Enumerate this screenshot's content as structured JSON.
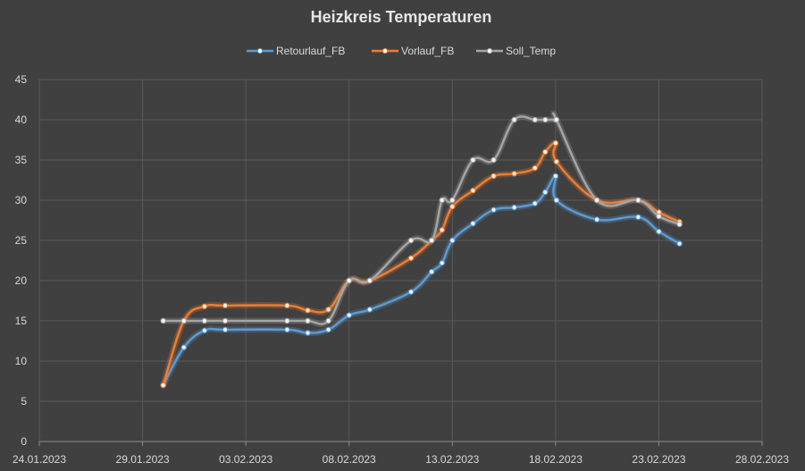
{
  "chart_data": {
    "type": "line",
    "title": "Heizkreis Temperaturen",
    "xlabel": "",
    "ylabel": "",
    "ylim": [
      0,
      45
    ],
    "xlim": [
      "24.01.2023",
      "28.02.2023"
    ],
    "grid": true,
    "legend_position": "top",
    "x_ticks": [
      "24.01.2023",
      "29.01.2023",
      "03.02.2023",
      "08.02.2023",
      "13.02.2023",
      "18.02.2023",
      "23.02.2023",
      "28.02.2023"
    ],
    "y_ticks": [
      0,
      5,
      10,
      15,
      20,
      25,
      30,
      35,
      40,
      45
    ],
    "series": [
      {
        "name": "Retourlauf_FB",
        "color": "#5b9bd5",
        "points": [
          [
            "30.01.2023",
            7
          ],
          [
            "31.01.2023",
            11.7
          ],
          [
            "01.02.2023",
            13.8
          ],
          [
            "02.02.2023",
            13.9
          ],
          [
            "05.02.2023",
            13.9
          ],
          [
            "06.02.2023",
            13.5
          ],
          [
            "07.02.2023",
            13.9
          ],
          [
            "08.02.2023",
            15.7
          ],
          [
            "09.02.2023",
            16.4
          ],
          [
            "11.02.2023",
            18.6
          ],
          [
            "12.02.2023",
            21.1
          ],
          [
            "12.02.2023 12:00",
            22.2
          ],
          [
            "13.02.2023",
            25
          ],
          [
            "14.02.2023",
            27.1
          ],
          [
            "15.02.2023",
            28.8
          ],
          [
            "16.02.2023",
            29.1
          ],
          [
            "17.02.2023",
            29.6
          ],
          [
            "17.02.2023 12:00",
            31
          ],
          [
            "18.02.2023",
            33
          ],
          [
            "18.02.2023 01:00",
            30
          ],
          [
            "20.02.2023",
            27.6
          ],
          [
            "22.02.2023",
            27.9
          ],
          [
            "23.02.2023",
            26.1
          ],
          [
            "24.02.2023",
            24.6
          ]
        ]
      },
      {
        "name": "Vorlauf_FB",
        "color": "#ed7d31",
        "points": [
          [
            "30.01.2023",
            7
          ],
          [
            "31.01.2023",
            15
          ],
          [
            "01.02.2023",
            16.8
          ],
          [
            "02.02.2023",
            16.9
          ],
          [
            "05.02.2023",
            16.9
          ],
          [
            "06.02.2023",
            16.3
          ],
          [
            "07.02.2023",
            16.4
          ],
          [
            "08.02.2023",
            20
          ],
          [
            "09.02.2023",
            20
          ],
          [
            "11.02.2023",
            22.8
          ],
          [
            "12.02.2023",
            25
          ],
          [
            "12.02.2023 12:00",
            26.3
          ],
          [
            "13.02.2023",
            29.2
          ],
          [
            "14.02.2023",
            31.2
          ],
          [
            "15.02.2023",
            33
          ],
          [
            "16.02.2023",
            33.3
          ],
          [
            "17.02.2023",
            34
          ],
          [
            "17.02.2023 12:00",
            36
          ],
          [
            "18.02.2023",
            37.1
          ],
          [
            "18.02.2023 01:00",
            34.8
          ],
          [
            "20.02.2023",
            30
          ],
          [
            "22.02.2023",
            30
          ],
          [
            "23.02.2023",
            28.5
          ],
          [
            "24.02.2023",
            27.3
          ]
        ]
      },
      {
        "name": "Soll_Temp",
        "color": "#a5a5a5",
        "points": [
          [
            "30.01.2023",
            15
          ],
          [
            "31.01.2023",
            15
          ],
          [
            "01.02.2023",
            15
          ],
          [
            "02.02.2023",
            15
          ],
          [
            "05.02.2023",
            15
          ],
          [
            "06.02.2023",
            15
          ],
          [
            "07.02.2023",
            15
          ],
          [
            "08.02.2023",
            20
          ],
          [
            "09.02.2023",
            20
          ],
          [
            "11.02.2023",
            25
          ],
          [
            "12.02.2023",
            25
          ],
          [
            "12.02.2023 12:00",
            30
          ],
          [
            "13.02.2023",
            30
          ],
          [
            "14.02.2023",
            35
          ],
          [
            "15.02.2023",
            35
          ],
          [
            "16.02.2023",
            40
          ],
          [
            "17.02.2023",
            40
          ],
          [
            "17.02.2023 12:00",
            40
          ],
          [
            "18.02.2023",
            40
          ],
          [
            "18.02.2023 01:00",
            40
          ],
          [
            "20.02.2023",
            30
          ],
          [
            "22.02.2023",
            30
          ],
          [
            "23.02.2023",
            28
          ],
          [
            "24.02.2023",
            27
          ]
        ]
      }
    ]
  }
}
